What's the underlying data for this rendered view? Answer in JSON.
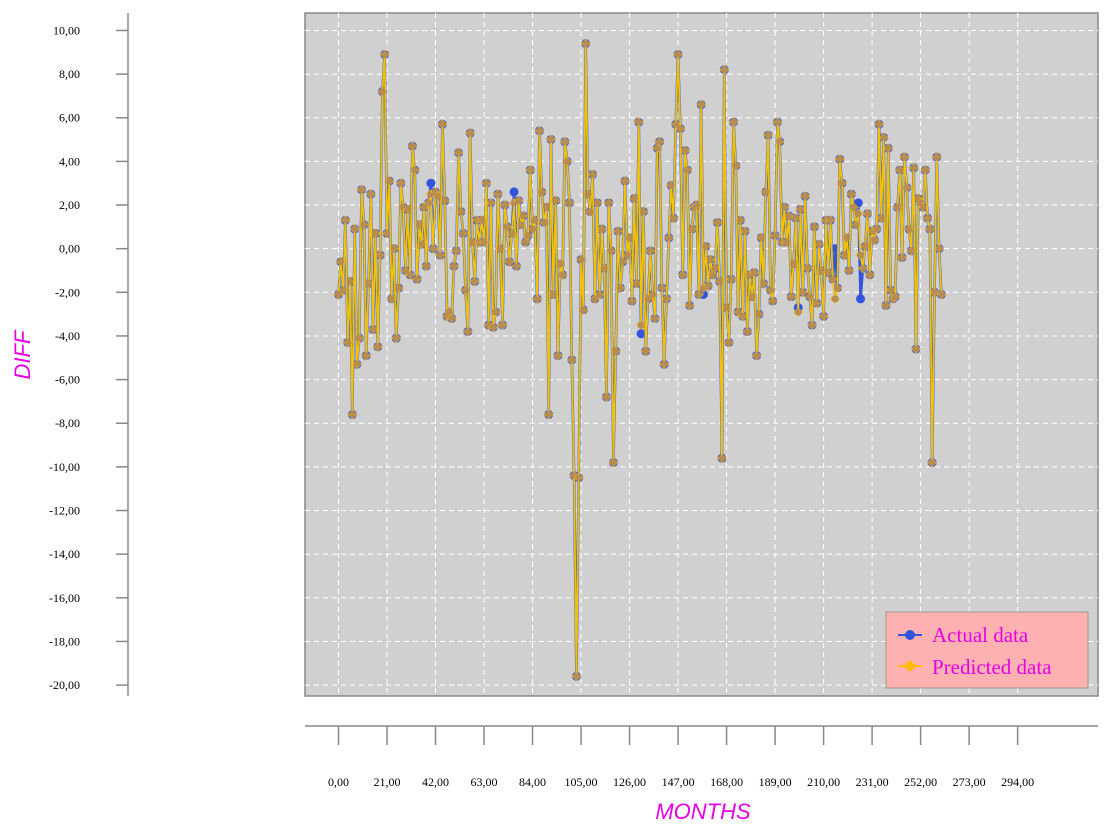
{
  "colors": {
    "axis_title": "#e600e6",
    "plot_background": "#d0d0d0",
    "grid": "#ffffff",
    "actual": "#3355dd",
    "predicted": "#ffbb00",
    "predicted_line": "#f2c200",
    "marker_fill": "#b08a5a",
    "legend_background": "#ffb0b0",
    "legend_text": "#e600e6"
  },
  "icons": {
    "actual_marker": "circle-line-icon",
    "predicted_marker": "diamond-line-icon"
  },
  "chart_data": {
    "type": "line",
    "xlabel": "MONTHS",
    "ylabel": "DIFF",
    "xlim": [
      -6,
      324
    ],
    "ylim": [
      -20.5,
      10.8
    ],
    "grid": true,
    "legend_position": "bottom-right",
    "x_ticks": [
      "0,00",
      "21,00",
      "42,00",
      "63,00",
      "84,00",
      "105,00",
      "126,00",
      "147,00",
      "168,00",
      "189,00",
      "210,00",
      "231,00",
      "252,00",
      "273,00",
      "294,00"
    ],
    "y_ticks": [
      "10,00",
      "8,00",
      "6,00",
      "4,00",
      "2,00",
      "0,00",
      "-2,00",
      "-4,00",
      "-6,00",
      "-8,00",
      "-10,00",
      "-12,00",
      "-14,00",
      "-16,00",
      "-18,00",
      "-20,00"
    ],
    "x_start": 0,
    "x_step": 1,
    "series": [
      {
        "name": "Actual data",
        "values": [
          -2.1,
          -0.6,
          -1.9,
          1.3,
          -4.3,
          -1.5,
          -7.6,
          0.9,
          -5.3,
          -4.1,
          2.7,
          1.1,
          -4.9,
          -1.6,
          2.5,
          -3.7,
          0.7,
          -4.5,
          -0.3,
          7.2,
          8.9,
          0.7,
          3.1,
          -2.3,
          0.0,
          -4.1,
          -1.8,
          3.0,
          1.9,
          -1.0,
          1.8,
          -1.2,
          4.7,
          3.6,
          -1.4,
          1.1,
          0.2,
          1.9,
          -0.8,
          2.1,
          3.0,
          0.0,
          2.6,
          2.4,
          -0.3,
          5.7,
          2.2,
          -3.1,
          -2.9,
          -3.2,
          -0.8,
          -0.1,
          4.4,
          1.7,
          0.7,
          -1.9,
          -3.8,
          5.3,
          0.3,
          -1.5,
          1.3,
          0.3,
          1.3,
          0.3,
          3.0,
          -3.5,
          2.1,
          -3.6,
          -2.9,
          2.5,
          0.0,
          -3.5,
          2.0,
          1.0,
          -0.6,
          0.7,
          2.6,
          -0.8,
          2.2,
          1.1,
          1.5,
          0.3,
          0.6,
          3.6,
          0.9,
          1.3,
          -2.3,
          5.4,
          2.6,
          1.2,
          1.9,
          -7.6,
          5.0,
          -2.1,
          2.2,
          -4.9,
          -0.7,
          -1.2,
          4.9,
          4.0,
          2.1,
          -5.1,
          -10.4,
          -19.6,
          -10.5,
          -0.5,
          -2.8,
          9.4,
          2.5,
          1.7,
          3.4,
          -2.3,
          2.1,
          -2.1,
          0.9,
          -0.9,
          -6.8,
          2.1,
          -0.1,
          -9.8,
          -4.7,
          0.8,
          -1.8,
          -0.6,
          3.1,
          -0.3,
          0.5,
          -2.4,
          2.3,
          -1.6,
          5.8,
          -3.9,
          1.7,
          -4.7,
          -2.3,
          -0.1,
          -2.1,
          -3.2,
          4.6,
          4.9,
          -1.8,
          -5.3,
          -2.3,
          0.5,
          2.9,
          1.4,
          5.7,
          8.9,
          5.5,
          -1.2,
          4.5,
          3.6,
          -2.6,
          0.9,
          1.9,
          2.0,
          -2.1,
          6.6,
          -2.1,
          0.1,
          -1.7,
          -0.5,
          -1.2,
          -0.9,
          1.2,
          -1.5,
          -9.6,
          8.2,
          -2.7,
          -4.3,
          -1.4,
          5.8,
          3.8,
          -2.9,
          1.3,
          -3.1,
          0.8,
          -3.8,
          -1.2,
          -2.2,
          -1.1,
          -4.9,
          -3.0,
          0.5,
          -1.6,
          2.6,
          5.2,
          -1.9,
          -2.4,
          0.6,
          5.8,
          4.9,
          0.3,
          1.9,
          0.3,
          1.5,
          -2.2,
          -0.7,
          1.4,
          -2.7,
          1.8,
          -2.0,
          2.4,
          -0.9,
          -2.2,
          -3.5,
          1.0,
          -2.5,
          0.2,
          -1.0,
          -3.1,
          1.3,
          -1.1,
          1.3,
          -1.4,
          0.0,
          -1.8,
          4.1,
          3.0,
          -0.3,
          0.5,
          -1.0,
          2.5,
          1.9,
          1.1,
          2.1,
          -2.3,
          -0.9,
          0.1,
          1.6,
          -1.2,
          0.8,
          0.4,
          0.9,
          5.7,
          1.4,
          5.1,
          -2.6,
          4.6,
          -1.9,
          -2.3,
          -2.2,
          1.9,
          3.6,
          -0.4,
          4.2,
          2.8,
          0.9,
          -0.1,
          3.7,
          -4.6,
          2.3,
          2.1,
          1.9,
          3.6,
          1.4,
          0.9,
          -9.8,
          -2.0,
          4.2,
          0.0,
          -2.1
        ],
        "color": "#3355dd"
      },
      {
        "name": "Predicted data",
        "values": [
          -2.1,
          -0.6,
          -1.9,
          1.3,
          -4.3,
          -1.5,
          -7.6,
          0.9,
          -5.3,
          -4.1,
          2.7,
          1.1,
          -4.9,
          -1.6,
          2.5,
          -3.7,
          0.7,
          -4.5,
          -0.3,
          7.2,
          8.9,
          0.7,
          3.1,
          -2.3,
          0.0,
          -4.1,
          -1.8,
          3.0,
          1.9,
          -1.0,
          1.8,
          -1.2,
          4.7,
          3.6,
          -1.4,
          1.1,
          0.2,
          1.9,
          -0.8,
          2.1,
          2.5,
          0.0,
          2.6,
          2.4,
          -0.3,
          5.7,
          2.2,
          -3.1,
          -2.9,
          -3.2,
          -0.8,
          -0.1,
          4.4,
          1.7,
          0.7,
          -1.9,
          -3.8,
          5.3,
          0.3,
          -1.5,
          1.3,
          0.3,
          1.3,
          0.3,
          3.0,
          -3.5,
          2.1,
          -3.6,
          -2.9,
          2.5,
          0.0,
          -3.5,
          2.0,
          1.0,
          -0.6,
          0.7,
          2.1,
          -0.8,
          2.2,
          1.1,
          1.5,
          0.3,
          0.6,
          3.6,
          0.9,
          1.3,
          -2.3,
          5.4,
          2.6,
          1.2,
          1.9,
          -7.6,
          5.0,
          -2.1,
          2.2,
          -4.9,
          -0.7,
          -1.2,
          4.9,
          4.0,
          2.1,
          -5.1,
          -10.4,
          -19.6,
          -10.5,
          -0.5,
          -2.8,
          9.4,
          2.5,
          1.7,
          3.4,
          -2.3,
          2.1,
          -2.1,
          0.9,
          -0.9,
          -6.8,
          2.1,
          -0.1,
          -9.8,
          -4.7,
          0.8,
          -1.8,
          -0.6,
          3.1,
          -0.3,
          0.5,
          -2.4,
          2.3,
          -1.6,
          5.8,
          -3.5,
          1.7,
          -4.7,
          -2.3,
          -0.1,
          -2.1,
          -3.2,
          4.6,
          4.9,
          -1.8,
          -5.3,
          -2.3,
          0.5,
          2.9,
          1.4,
          5.7,
          8.9,
          5.5,
          -1.2,
          4.5,
          3.6,
          -2.6,
          0.9,
          1.9,
          2.0,
          -2.1,
          6.6,
          -1.8,
          0.1,
          -1.7,
          -0.5,
          -1.2,
          -0.9,
          1.2,
          -1.5,
          -9.6,
          8.2,
          -2.7,
          -4.3,
          -1.4,
          5.8,
          3.8,
          -2.9,
          1.3,
          -3.1,
          0.8,
          -3.8,
          -1.2,
          -2.2,
          -1.1,
          -4.9,
          -3.0,
          0.5,
          -1.6,
          2.6,
          5.2,
          -1.9,
          -2.4,
          0.6,
          5.8,
          4.9,
          0.3,
          1.9,
          0.3,
          1.5,
          -2.2,
          -0.7,
          1.4,
          -2.9,
          1.8,
          -2.0,
          2.4,
          -0.9,
          -2.2,
          -3.5,
          1.0,
          -2.5,
          0.2,
          -1.0,
          -3.1,
          1.3,
          -1.1,
          1.3,
          -1.4,
          -2.3,
          -1.8,
          4.1,
          3.0,
          -0.3,
          0.5,
          -1.0,
          2.5,
          1.9,
          1.1,
          1.6,
          -0.3,
          -0.9,
          0.1,
          1.6,
          -1.2,
          0.8,
          0.4,
          0.9,
          5.7,
          1.4,
          5.1,
          -2.6,
          4.6,
          -1.9,
          -2.3,
          -2.2,
          1.9,
          3.6,
          -0.4,
          4.2,
          2.8,
          0.9,
          -0.1,
          3.7,
          -4.6,
          2.3,
          2.1,
          1.9,
          3.6,
          1.4,
          0.9,
          -9.8,
          -2.0,
          4.2,
          0.0,
          -2.1
        ],
        "color": "#ffbb00"
      }
    ]
  }
}
